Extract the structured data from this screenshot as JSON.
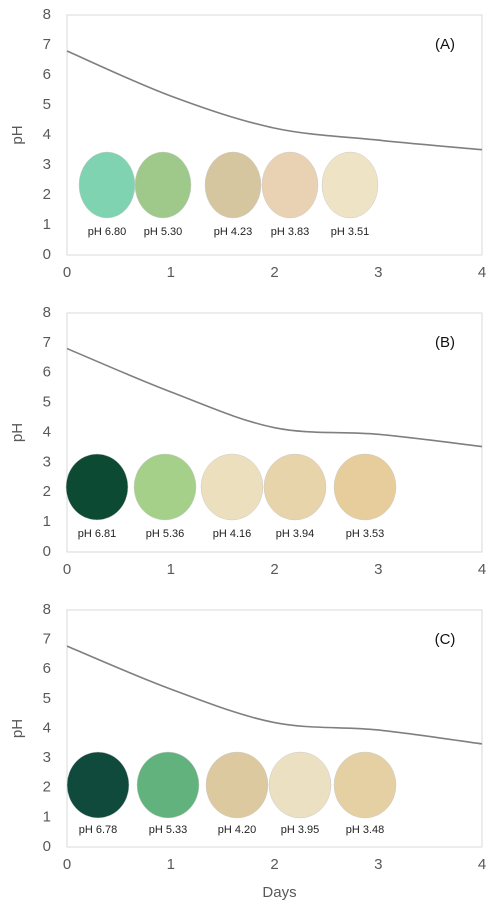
{
  "chart_data": [
    {
      "type": "line",
      "title": "(A)",
      "ylabel": "pH",
      "x": [
        0,
        1,
        2,
        3,
        4
      ],
      "values": [
        6.8,
        5.3,
        4.23,
        3.83,
        3.51
      ],
      "color": "#7f7f7f",
      "xlim": [
        0,
        4
      ],
      "ylim": [
        0,
        8
      ],
      "xticks": [
        0,
        1,
        2,
        3,
        4
      ],
      "yticks": [
        0,
        1,
        2,
        3,
        4,
        5,
        6,
        7,
        8
      ],
      "grid": false,
      "swatch_labels": [
        "pH 6.80",
        "pH 5.30",
        "pH 4.23",
        "pH 3.83",
        "pH 3.51"
      ],
      "swatch_colors": [
        "#7fd3b0",
        "#9fc98a",
        "#d6c69f",
        "#e9d1b3",
        "#efe3c6"
      ]
    },
    {
      "type": "line",
      "title": "(B)",
      "ylabel": "pH",
      "x": [
        0,
        1,
        2,
        3,
        4
      ],
      "values": [
        6.81,
        5.36,
        4.16,
        3.94,
        3.53
      ],
      "color": "#7f7f7f",
      "xlim": [
        0,
        4
      ],
      "ylim": [
        0,
        8
      ],
      "xticks": [
        0,
        1,
        2,
        3,
        4
      ],
      "yticks": [
        0,
        1,
        2,
        3,
        4,
        5,
        6,
        7,
        8
      ],
      "grid": false,
      "swatch_labels": [
        "pH 6.81",
        "pH 5.36",
        "pH 4.16",
        "pH 3.94",
        "pH 3.53"
      ],
      "swatch_colors": [
        "#0d4a33",
        "#a5d08a",
        "#ebdfbd",
        "#e7d4aa",
        "#e7cc9c"
      ]
    },
    {
      "type": "line",
      "title": "(C)",
      "ylabel": "pH",
      "xlabel": "Days",
      "x": [
        0,
        1,
        2,
        3,
        4
      ],
      "values": [
        6.78,
        5.33,
        4.2,
        3.95,
        3.48
      ],
      "color": "#7f7f7f",
      "xlim": [
        0,
        4
      ],
      "ylim": [
        0,
        8
      ],
      "xticks": [
        0,
        1,
        2,
        3,
        4
      ],
      "yticks": [
        0,
        1,
        2,
        3,
        4,
        5,
        6,
        7,
        8
      ],
      "grid": false,
      "swatch_labels": [
        "pH 6.78",
        "pH 5.33",
        "pH 4.20",
        "pH 3.95",
        "pH 3.48"
      ],
      "swatch_colors": [
        "#0f4a3c",
        "#62b27e",
        "#dcc9a0",
        "#ece0c2",
        "#e4d0a3"
      ]
    }
  ]
}
